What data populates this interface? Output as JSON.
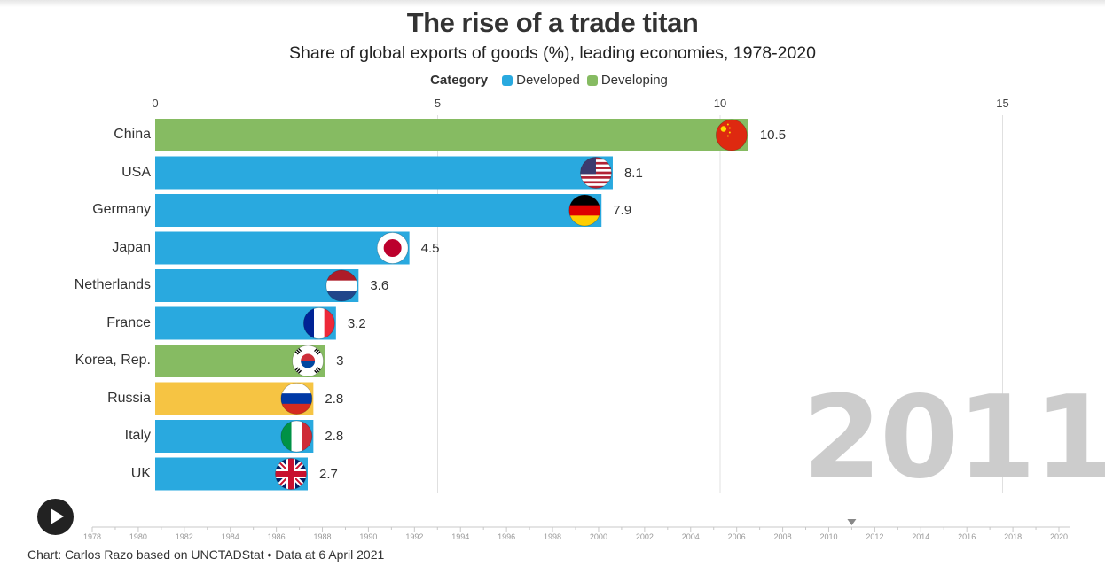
{
  "title": "The rise of a trade titan",
  "subtitle": "Share of global exports of goods (%), leading economies, 1978-2020",
  "legend": {
    "title": "Category",
    "items": [
      {
        "label": "Developed",
        "color": "#29a9df"
      },
      {
        "label": "Developing",
        "color": "#86bb62"
      }
    ]
  },
  "colors": {
    "developed": "#29a9df",
    "developing": "#86bb62",
    "transition": "#f6c443"
  },
  "current_year": "2011",
  "footer": "Chart: Carlos Razo based on UNCTADStat • Data at 6 April 2021",
  "chart_data": {
    "type": "bar",
    "orientation": "horizontal",
    "year": 2011,
    "categories": [
      "China",
      "USA",
      "Germany",
      "Japan",
      "Netherlands",
      "France",
      "Korea, Rep.",
      "Russia",
      "Italy",
      "UK"
    ],
    "values": [
      10.5,
      8.1,
      7.9,
      4.5,
      3.6,
      3.2,
      3,
      2.8,
      2.8,
      2.7
    ],
    "value_labels": [
      "10.5",
      "8.1",
      "7.9",
      "4.5",
      "3.6",
      "3.2",
      "3",
      "2.8",
      "2.8",
      "2.7"
    ],
    "groups": [
      "developing",
      "developed",
      "developed",
      "developed",
      "developed",
      "developed",
      "developing",
      "transition",
      "developed",
      "developed"
    ],
    "flags": [
      "china-flag",
      "usa-flag",
      "germany-flag",
      "japan-flag",
      "netherlands-flag",
      "france-flag",
      "korea-flag",
      "russia-flag",
      "italy-flag",
      "uk-flag"
    ],
    "xlim": [
      0,
      15.5
    ],
    "xticks": [
      "0",
      "5",
      "10",
      "15"
    ],
    "grid": true,
    "legend_position": "top-center",
    "timeline": {
      "range": [
        1978,
        2020
      ],
      "ticks": [
        "1978",
        "1980",
        "1982",
        "1984",
        "1986",
        "1988",
        "1990",
        "1992",
        "1994",
        "1996",
        "1998",
        "2000",
        "2002",
        "2004",
        "2006",
        "2008",
        "2010",
        "2012",
        "2014",
        "2016",
        "2018",
        "2020"
      ],
      "current": 2011
    }
  }
}
